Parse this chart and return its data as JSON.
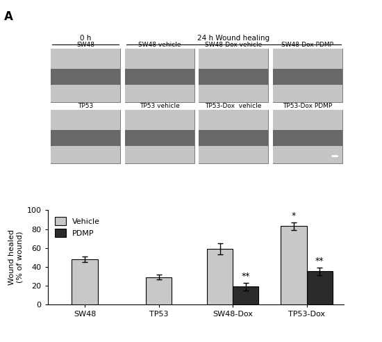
{
  "panel_label": "A",
  "row1_labels": [
    "SW48",
    "SW48 vehicle",
    "SW48-Dox vehicle",
    "SW48-Dox PDMP"
  ],
  "row2_labels": [
    "TP53",
    "TP53 vehicle",
    "TP53-Dox  vehicle",
    "TP53-Dox PDMP"
  ],
  "header_0h": "0 h",
  "header_24h": "24 h Wound healing",
  "bar_groups": [
    "SW48",
    "TP53",
    "SW48-Dox",
    "TP53-Dox"
  ],
  "vehicle_values": [
    48,
    29,
    59,
    83
  ],
  "pdmp_values": [
    null,
    null,
    19,
    35
  ],
  "vehicle_errors": [
    3,
    2.5,
    6,
    4
  ],
  "pdmp_errors": [
    null,
    null,
    4,
    4
  ],
  "vehicle_color": "#c8c8c8",
  "pdmp_color": "#2b2b2b",
  "ylabel": "Wound healed\n(% of wound)",
  "ylim": [
    0,
    100
  ],
  "yticks": [
    0,
    20,
    40,
    60,
    80,
    100
  ],
  "significance_vehicle": [
    "",
    "",
    "",
    "*"
  ],
  "significance_pdmp": [
    "",
    "",
    "**",
    "**"
  ],
  "bar_width": 0.35
}
